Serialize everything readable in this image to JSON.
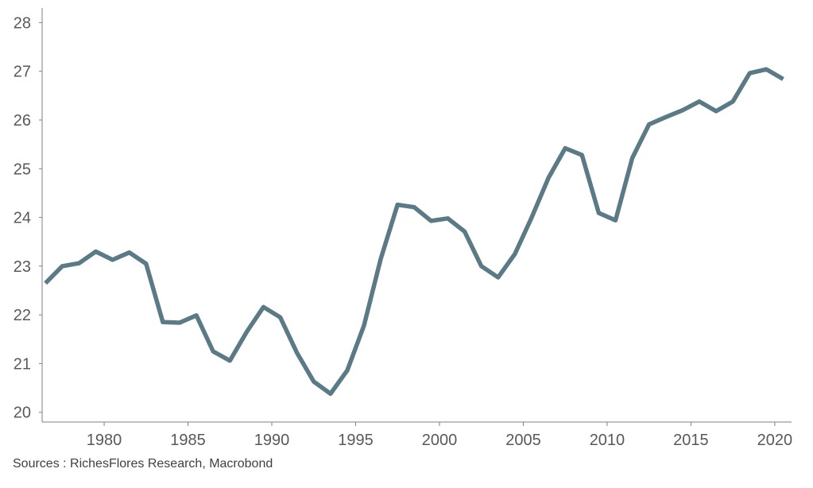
{
  "chart_data": {
    "type": "line",
    "title": "",
    "xlabel": "",
    "ylabel": "",
    "xlim": [
      1976.3,
      2021
    ],
    "ylim": [
      19.8,
      28.3
    ],
    "yticks": [
      20,
      21,
      22,
      23,
      24,
      25,
      26,
      27,
      28
    ],
    "xticks": [
      1980,
      1985,
      1990,
      1995,
      2000,
      2005,
      2010,
      2015,
      2020
    ],
    "grid": false,
    "line_color": "#5b7a86",
    "series": [
      {
        "x": [
          1976.5,
          1977.5,
          1978.5,
          1979.5,
          1980.5,
          1981.5,
          1982.5,
          1983.5,
          1984.5,
          1985.5,
          1986.5,
          1987.5,
          1988.5,
          1989.5,
          1990.5,
          1991.5,
          1992.5,
          1993.5,
          1994.5,
          1995.5,
          1996.5,
          1997.5,
          1998.5,
          1999.5,
          2000.5,
          2001.5,
          2002.5,
          2003.5,
          2004.5,
          2005.5,
          2006.5,
          2007.5,
          2008.5,
          2009.5,
          2010.5,
          2011.5,
          2012.5,
          2013.5,
          2014.5,
          2015.5,
          2016.5,
          2017.5,
          2018.5,
          2019.5,
          2020.5
        ],
        "values": [
          22.65,
          23.0,
          23.06,
          23.3,
          23.13,
          23.28,
          23.05,
          21.85,
          21.84,
          21.99,
          21.25,
          21.06,
          21.65,
          22.16,
          21.95,
          21.22,
          20.63,
          20.38,
          20.86,
          21.78,
          23.15,
          24.26,
          24.21,
          23.93,
          23.98,
          23.71,
          23.0,
          22.77,
          23.25,
          24.0,
          24.81,
          25.42,
          25.28,
          24.09,
          23.94,
          25.22,
          25.91,
          26.06,
          26.2,
          26.38,
          26.18,
          26.38,
          26.96,
          27.04,
          26.84
        ]
      }
    ]
  },
  "source": "Sources : RichesFlores Research, Macrobond"
}
